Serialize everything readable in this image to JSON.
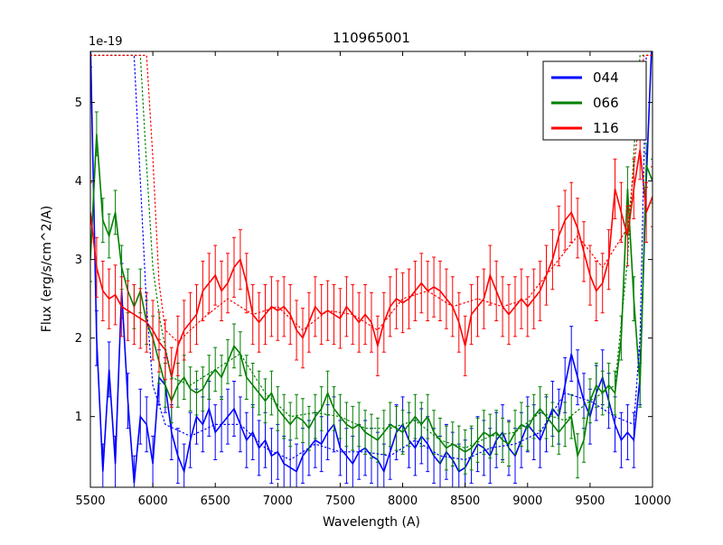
{
  "figure": {
    "title": "110965001",
    "xlabel": "Wavelength (A)",
    "ylabel": "Flux (erg/s/cm^2/A)",
    "offset_text": "1e-19"
  },
  "chart_data": {
    "type": "line",
    "title": "110965001",
    "xlabel": "Wavelength (A)",
    "ylabel": "Flux (erg/s/cm^2/A)",
    "y_offset_label": "1e-19",
    "xlim": [
      5500,
      10000
    ],
    "ylim": [
      0.1,
      5.65
    ],
    "xticks": [
      5500,
      6000,
      6500,
      7000,
      7500,
      8000,
      8500,
      9000,
      9500,
      10000
    ],
    "yticks": [
      1,
      2,
      3,
      4,
      5
    ],
    "grid": false,
    "legend_position": "upper right",
    "legend_entries": [
      "044",
      "066",
      "116"
    ],
    "x_start": 5500,
    "x_step": 50,
    "series": [
      {
        "name": "044",
        "color": "#0000ff",
        "err": 0.35,
        "values": [
          5.8,
          2.0,
          0.3,
          1.6,
          0.4,
          2.6,
          1.2,
          0.15,
          1.0,
          0.9,
          0.4,
          1.5,
          1.4,
          0.8,
          0.5,
          0.3,
          0.7,
          1.0,
          0.9,
          1.1,
          0.8,
          0.9,
          1.0,
          1.1,
          0.9,
          0.7,
          0.8,
          0.6,
          0.7,
          0.5,
          0.55,
          0.4,
          0.35,
          0.3,
          0.5,
          0.6,
          0.7,
          0.65,
          0.8,
          0.9,
          0.6,
          0.5,
          0.4,
          0.55,
          0.6,
          0.5,
          0.45,
          0.3,
          0.55,
          0.8,
          0.9,
          0.7,
          0.6,
          0.75,
          0.65,
          0.5,
          0.4,
          0.55,
          0.45,
          0.3,
          0.35,
          0.5,
          0.65,
          0.6,
          0.5,
          0.7,
          0.8,
          0.6,
          0.5,
          0.7,
          0.9,
          0.8,
          0.7,
          0.9,
          1.1,
          1.0,
          1.4,
          1.8,
          1.5,
          1.2,
          1.0,
          1.3,
          1.5,
          1.2,
          0.9,
          0.7,
          0.8,
          0.7,
          1.5,
          4.0,
          6.0
        ]
      },
      {
        "name": "066",
        "color": "#008000",
        "err": 0.28,
        "values": [
          3.0,
          4.6,
          3.5,
          3.3,
          3.6,
          2.9,
          2.6,
          2.4,
          2.6,
          2.2,
          2.0,
          1.7,
          1.4,
          1.2,
          1.4,
          1.5,
          1.35,
          1.3,
          1.35,
          1.5,
          1.6,
          1.5,
          1.7,
          1.9,
          1.8,
          1.5,
          1.4,
          1.3,
          1.2,
          1.3,
          1.1,
          1.0,
          0.9,
          1.0,
          0.95,
          0.85,
          1.0,
          1.1,
          1.3,
          1.1,
          1.0,
          0.9,
          0.85,
          0.9,
          0.8,
          0.75,
          0.7,
          0.8,
          0.9,
          0.85,
          0.8,
          0.9,
          1.0,
          0.9,
          1.0,
          0.8,
          0.7,
          0.6,
          0.65,
          0.6,
          0.55,
          0.6,
          0.7,
          0.8,
          0.75,
          0.8,
          0.7,
          0.65,
          0.8,
          0.9,
          0.85,
          1.0,
          1.1,
          1.0,
          0.9,
          0.8,
          0.9,
          1.0,
          0.5,
          0.7,
          1.2,
          1.4,
          1.3,
          1.4,
          1.3,
          2.0,
          3.9,
          2.5,
          1.4,
          4.2,
          4.0
        ]
      },
      {
        "name": "116",
        "color": "#ff0000",
        "err": 0.38,
        "values": [
          3.6,
          2.9,
          2.6,
          2.5,
          2.55,
          2.4,
          2.35,
          2.3,
          2.25,
          2.2,
          2.1,
          1.95,
          1.85,
          1.5,
          1.9,
          2.1,
          2.2,
          2.3,
          2.6,
          2.7,
          2.8,
          2.6,
          2.7,
          2.9,
          3.0,
          2.7,
          2.3,
          2.2,
          2.3,
          2.4,
          2.35,
          2.4,
          2.3,
          2.1,
          2.0,
          2.2,
          2.4,
          2.3,
          2.35,
          2.3,
          2.25,
          2.4,
          2.3,
          2.2,
          2.3,
          2.2,
          1.9,
          2.2,
          2.4,
          2.5,
          2.45,
          2.5,
          2.6,
          2.7,
          2.6,
          2.65,
          2.6,
          2.5,
          2.4,
          2.2,
          1.9,
          2.3,
          2.4,
          2.5,
          2.8,
          2.6,
          2.4,
          2.3,
          2.4,
          2.5,
          2.4,
          2.5,
          2.6,
          2.8,
          3.0,
          3.3,
          3.5,
          3.6,
          3.4,
          3.1,
          2.8,
          2.6,
          2.7,
          3.0,
          3.9,
          3.6,
          3.3,
          3.9,
          4.4,
          3.6,
          3.8
        ]
      }
    ],
    "dotted_series": [
      {
        "name": "044-dotted",
        "color": "#0000ff",
        "points": [
          [
            5500,
            5.6
          ],
          [
            5850,
            5.6
          ],
          [
            5900,
            4.0
          ],
          [
            5950,
            2.4
          ],
          [
            6000,
            1.4
          ],
          [
            6100,
            0.9
          ],
          [
            6300,
            0.75
          ],
          [
            6500,
            0.9
          ],
          [
            6700,
            0.9
          ],
          [
            6900,
            0.6
          ],
          [
            7100,
            0.45
          ],
          [
            7300,
            0.65
          ],
          [
            7500,
            0.55
          ],
          [
            7700,
            0.55
          ],
          [
            7900,
            0.5
          ],
          [
            8100,
            0.7
          ],
          [
            8300,
            0.5
          ],
          [
            8500,
            0.45
          ],
          [
            8700,
            0.6
          ],
          [
            8900,
            0.65
          ],
          [
            9100,
            0.8
          ],
          [
            9300,
            1.3
          ],
          [
            9500,
            1.2
          ],
          [
            9700,
            1.0
          ],
          [
            9850,
            0.9
          ],
          [
            9900,
            2.0
          ],
          [
            9950,
            5.6
          ],
          [
            10000,
            5.6
          ]
        ]
      },
      {
        "name": "066-dotted",
        "color": "#008000",
        "points": [
          [
            5500,
            5.6
          ],
          [
            5900,
            5.6
          ],
          [
            5950,
            4.2
          ],
          [
            6000,
            2.9
          ],
          [
            6060,
            2.2
          ],
          [
            6150,
            1.5
          ],
          [
            6300,
            1.4
          ],
          [
            6500,
            1.6
          ],
          [
            6700,
            1.8
          ],
          [
            6900,
            1.3
          ],
          [
            7100,
            1.0
          ],
          [
            7300,
            1.05
          ],
          [
            7500,
            1.0
          ],
          [
            7700,
            0.85
          ],
          [
            7900,
            0.85
          ],
          [
            8100,
            0.95
          ],
          [
            8300,
            0.7
          ],
          [
            8500,
            0.6
          ],
          [
            8700,
            0.75
          ],
          [
            8900,
            0.8
          ],
          [
            9100,
            1.05
          ],
          [
            9300,
            0.95
          ],
          [
            9500,
            1.2
          ],
          [
            9700,
            1.4
          ],
          [
            9800,
            3.0
          ],
          [
            9860,
            4.6
          ],
          [
            9900,
            5.6
          ],
          [
            9980,
            5.6
          ]
        ]
      },
      {
        "name": "116-dotted",
        "color": "#ff0000",
        "points": [
          [
            5500,
            5.6
          ],
          [
            5950,
            5.6
          ],
          [
            6000,
            4.3
          ],
          [
            6050,
            2.7
          ],
          [
            6100,
            2.1
          ],
          [
            6200,
            1.95
          ],
          [
            6400,
            2.25
          ],
          [
            6600,
            2.5
          ],
          [
            6800,
            2.3
          ],
          [
            7000,
            2.4
          ],
          [
            7200,
            2.1
          ],
          [
            7400,
            2.35
          ],
          [
            7600,
            2.3
          ],
          [
            7800,
            2.1
          ],
          [
            8000,
            2.5
          ],
          [
            8200,
            2.6
          ],
          [
            8400,
            2.4
          ],
          [
            8600,
            2.5
          ],
          [
            8800,
            2.4
          ],
          [
            9000,
            2.5
          ],
          [
            9200,
            2.9
          ],
          [
            9400,
            3.3
          ],
          [
            9600,
            2.9
          ],
          [
            9800,
            3.4
          ],
          [
            9880,
            4.6
          ],
          [
            9930,
            5.6
          ],
          [
            10000,
            5.6
          ]
        ]
      }
    ]
  }
}
